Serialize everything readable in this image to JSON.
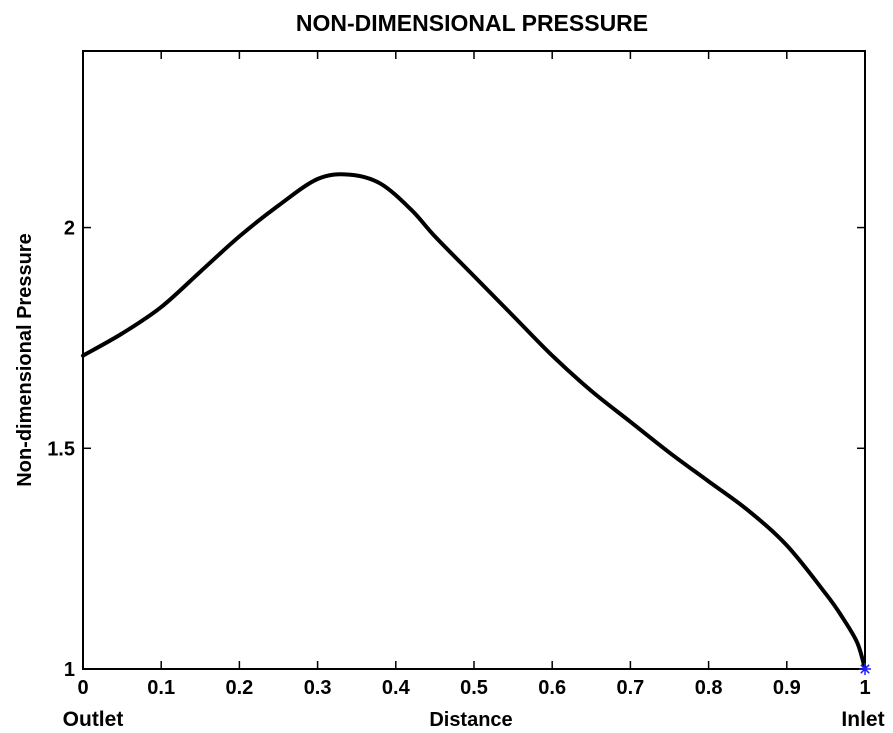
{
  "chart_data": {
    "type": "line",
    "title": "NON-DIMENSIONAL PRESSURE",
    "xlabel": "Distance",
    "ylabel": "Non-dimensional Pressure",
    "x_end_labels": {
      "left": "Outlet",
      "right": "Inlet"
    },
    "xlim": [
      0,
      1
    ],
    "ylim": [
      1,
      2.4
    ],
    "xticks": [
      "0",
      "0.1",
      "0.2",
      "0.3",
      "0.4",
      "0.5",
      "0.6",
      "0.7",
      "0.8",
      "0.9",
      "1"
    ],
    "yticks": [
      "1",
      "1.5",
      "2"
    ],
    "grid": false,
    "series": [
      {
        "color": "#000000",
        "x": [
          0,
          0.05,
          0.1,
          0.15,
          0.2,
          0.25,
          0.3,
          0.34,
          0.38,
          0.42,
          0.45,
          0.5,
          0.55,
          0.6,
          0.65,
          0.7,
          0.75,
          0.8,
          0.85,
          0.9,
          0.95,
          0.97,
          0.99,
          1.0
        ],
        "y": [
          1.71,
          1.76,
          1.82,
          1.9,
          1.98,
          2.05,
          2.11,
          2.12,
          2.1,
          2.04,
          1.98,
          1.89,
          1.8,
          1.71,
          1.63,
          1.56,
          1.49,
          1.425,
          1.36,
          1.28,
          1.17,
          1.12,
          1.06,
          1.0
        ]
      }
    ],
    "markers": [
      {
        "x": 1.0,
        "y": 1.0,
        "symbol": "*",
        "color": "#1f1fff"
      }
    ]
  }
}
